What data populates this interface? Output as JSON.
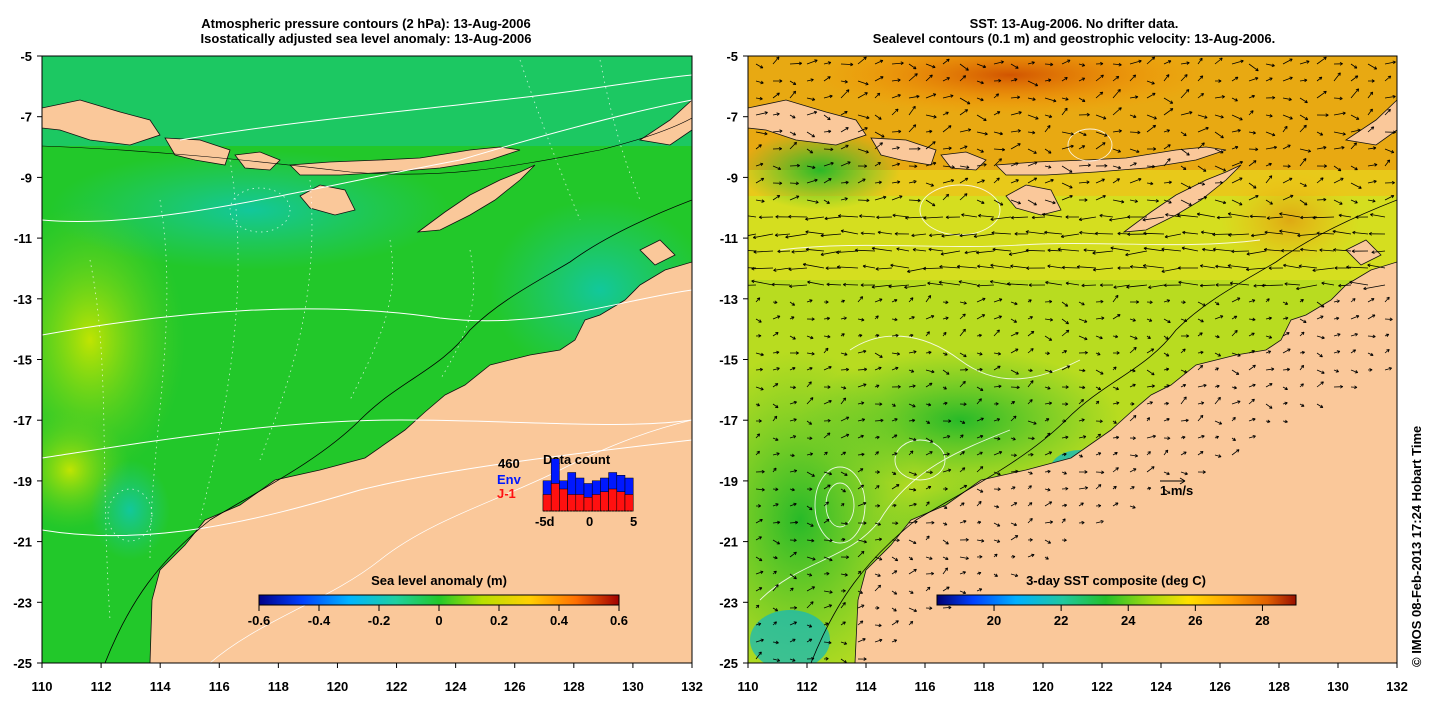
{
  "left_panel": {
    "title_line1": "Atmospheric pressure contours (2 hPa): 13-Aug-2006",
    "title_line2": "Isostatically adjusted sea level anomaly: 13-Aug-2006",
    "colorbar": {
      "title": "Sea level anomaly (m)",
      "ticks": [
        "-0.6",
        "-0.4",
        "-0.2",
        "0",
        "0.2",
        "0.4",
        "0.6"
      ],
      "range": [
        -0.6,
        0.6
      ]
    },
    "inset": {
      "max_count": "460",
      "title": "Data count",
      "series": [
        {
          "name": "Env",
          "color": "#0018ff"
        },
        {
          "name": "J-1",
          "color": "#ff1010"
        }
      ],
      "x_ticks": [
        "-5d",
        "0",
        "5"
      ]
    }
  },
  "right_panel": {
    "title_line1": "SST: 13-Aug-2006. No drifter data.",
    "title_line2": "Sealevel contours (0.1 m) and geostrophic velocity: 13-Aug-2006.",
    "colorbar": {
      "title": "3-day SST composite (deg C)",
      "ticks": [
        "20",
        "22",
        "24",
        "26",
        "28"
      ],
      "range": [
        18.3,
        29.0
      ]
    },
    "scale_label": "1 m/s"
  },
  "axes": {
    "lon_ticks": [
      "110",
      "112",
      "114",
      "116",
      "118",
      "120",
      "122",
      "124",
      "126",
      "128",
      "130",
      "132"
    ],
    "lat_ticks": [
      "-5",
      "-7",
      "-9",
      "-11",
      "-13",
      "-15",
      "-17",
      "-19",
      "-21",
      "-23",
      "-25"
    ],
    "lon_range": [
      110,
      132
    ],
    "lat_range": [
      -25,
      -5
    ]
  },
  "credit": "© IMOS 08-Feb-2013 17:24 Hobart Time",
  "colors": {
    "land": "#fac89a",
    "sla_ocean": "#22c82a",
    "sst_ocean": "#b8dc20"
  }
}
